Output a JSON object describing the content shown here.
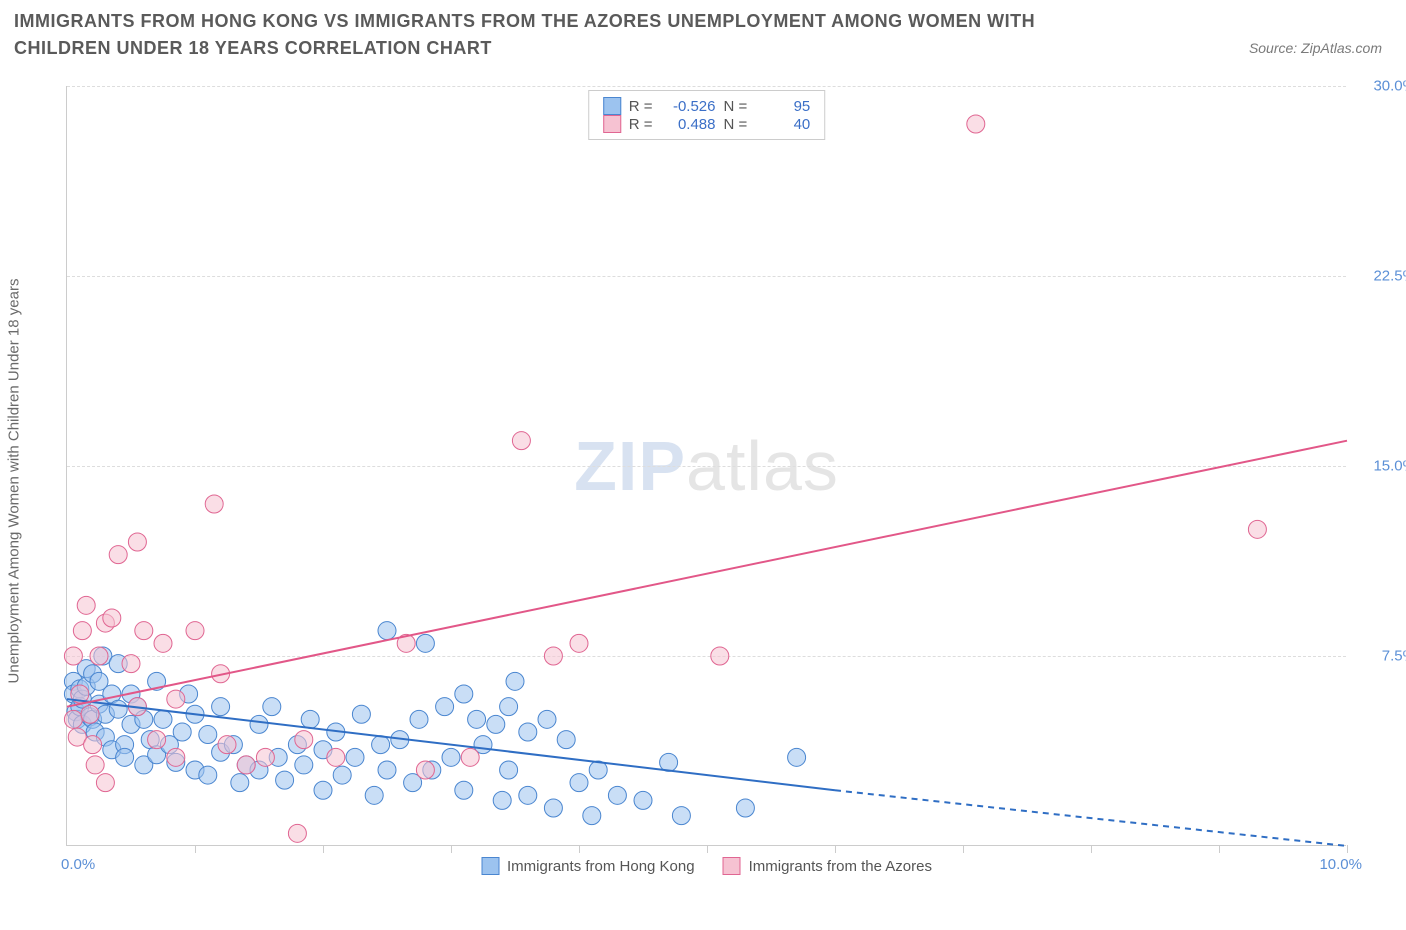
{
  "title": "IMMIGRANTS FROM HONG KONG VS IMMIGRANTS FROM THE AZORES UNEMPLOYMENT AMONG WOMEN WITH CHILDREN UNDER 18 YEARS CORRELATION CHART",
  "source": "Source: ZipAtlas.com",
  "watermark_a": "ZIP",
  "watermark_b": "atlas",
  "y_axis_label": "Unemployment Among Women with Children Under 18 years",
  "chart": {
    "type": "scatter",
    "background_color": "#ffffff",
    "grid_color": "#dddddd",
    "axis_color": "#cccccc",
    "xlim": [
      0,
      10
    ],
    "ylim": [
      0,
      30
    ],
    "x_ticks": [
      1,
      2,
      3,
      4,
      5,
      6,
      7,
      8,
      9,
      10
    ],
    "y_ticks": [
      7.5,
      15.0,
      22.5,
      30.0
    ],
    "y_tick_labels": [
      "7.5%",
      "15.0%",
      "22.5%",
      "30.0%"
    ],
    "x_min_label": "0.0%",
    "x_max_label": "10.0%",
    "marker_radius": 9,
    "marker_opacity": 0.55,
    "line_width": 2,
    "series": [
      {
        "name": "Immigrants from Hong Kong",
        "fill_color": "#9cc3ef",
        "stroke_color": "#4a86d0",
        "line_color": "#2f6ec4",
        "stats": {
          "R_label": "R =",
          "R": "-0.526",
          "N_label": "N =",
          "N": "95"
        },
        "trend": {
          "x1": 0,
          "y1": 5.8,
          "x2": 6.0,
          "y2": 2.2,
          "x2_dash": 10.0,
          "y2_dash": 0.0
        },
        "points": [
          [
            0.05,
            6.5
          ],
          [
            0.05,
            6.0
          ],
          [
            0.07,
            5.3
          ],
          [
            0.08,
            5.0
          ],
          [
            0.1,
            6.2
          ],
          [
            0.1,
            5.5
          ],
          [
            0.12,
            5.8
          ],
          [
            0.12,
            4.8
          ],
          [
            0.15,
            7.0
          ],
          [
            0.15,
            6.3
          ],
          [
            0.18,
            5.1
          ],
          [
            0.2,
            6.8
          ],
          [
            0.2,
            5.0
          ],
          [
            0.22,
            4.5
          ],
          [
            0.25,
            6.5
          ],
          [
            0.25,
            5.6
          ],
          [
            0.28,
            7.5
          ],
          [
            0.3,
            5.2
          ],
          [
            0.3,
            4.3
          ],
          [
            0.35,
            3.8
          ],
          [
            0.35,
            6.0
          ],
          [
            0.4,
            7.2
          ],
          [
            0.4,
            5.4
          ],
          [
            0.45,
            4.0
          ],
          [
            0.45,
            3.5
          ],
          [
            0.5,
            6.0
          ],
          [
            0.5,
            4.8
          ],
          [
            0.55,
            5.5
          ],
          [
            0.6,
            3.2
          ],
          [
            0.6,
            5.0
          ],
          [
            0.65,
            4.2
          ],
          [
            0.7,
            6.5
          ],
          [
            0.7,
            3.6
          ],
          [
            0.75,
            5.0
          ],
          [
            0.8,
            4.0
          ],
          [
            0.85,
            3.3
          ],
          [
            0.9,
            4.5
          ],
          [
            0.95,
            6.0
          ],
          [
            1.0,
            3.0
          ],
          [
            1.0,
            5.2
          ],
          [
            1.1,
            4.4
          ],
          [
            1.1,
            2.8
          ],
          [
            1.2,
            3.7
          ],
          [
            1.2,
            5.5
          ],
          [
            1.3,
            4.0
          ],
          [
            1.35,
            2.5
          ],
          [
            1.4,
            3.2
          ],
          [
            1.5,
            4.8
          ],
          [
            1.5,
            3.0
          ],
          [
            1.6,
            5.5
          ],
          [
            1.65,
            3.5
          ],
          [
            1.7,
            2.6
          ],
          [
            1.8,
            4.0
          ],
          [
            1.85,
            3.2
          ],
          [
            1.9,
            5.0
          ],
          [
            2.0,
            2.2
          ],
          [
            2.0,
            3.8
          ],
          [
            2.1,
            4.5
          ],
          [
            2.15,
            2.8
          ],
          [
            2.25,
            3.5
          ],
          [
            2.3,
            5.2
          ],
          [
            2.4,
            2.0
          ],
          [
            2.45,
            4.0
          ],
          [
            2.5,
            8.5
          ],
          [
            2.5,
            3.0
          ],
          [
            2.6,
            4.2
          ],
          [
            2.7,
            2.5
          ],
          [
            2.75,
            5.0
          ],
          [
            2.8,
            8.0
          ],
          [
            2.85,
            3.0
          ],
          [
            2.95,
            5.5
          ],
          [
            3.0,
            3.5
          ],
          [
            3.1,
            6.0
          ],
          [
            3.1,
            2.2
          ],
          [
            3.2,
            5.0
          ],
          [
            3.25,
            4.0
          ],
          [
            3.35,
            4.8
          ],
          [
            3.4,
            1.8
          ],
          [
            3.45,
            5.5
          ],
          [
            3.45,
            3.0
          ],
          [
            3.5,
            6.5
          ],
          [
            3.6,
            4.5
          ],
          [
            3.6,
            2.0
          ],
          [
            3.75,
            5.0
          ],
          [
            3.8,
            1.5
          ],
          [
            3.9,
            4.2
          ],
          [
            4.0,
            2.5
          ],
          [
            4.1,
            1.2
          ],
          [
            4.15,
            3.0
          ],
          [
            4.3,
            2.0
          ],
          [
            4.5,
            1.8
          ],
          [
            4.7,
            3.3
          ],
          [
            4.8,
            1.2
          ],
          [
            5.3,
            1.5
          ],
          [
            5.7,
            3.5
          ]
        ]
      },
      {
        "name": "Immigrants from the Azores",
        "fill_color": "#f6c2d2",
        "stroke_color": "#e06692",
        "line_color": "#e25788",
        "stats": {
          "R_label": "R =",
          "R": "0.488",
          "N_label": "N =",
          "N": "40"
        },
        "trend": {
          "x1": 0,
          "y1": 5.5,
          "x2": 10.0,
          "y2": 16.0
        },
        "points": [
          [
            0.05,
            5.0
          ],
          [
            0.05,
            7.5
          ],
          [
            0.08,
            4.3
          ],
          [
            0.1,
            6.0
          ],
          [
            0.12,
            8.5
          ],
          [
            0.15,
            9.5
          ],
          [
            0.18,
            5.2
          ],
          [
            0.2,
            4.0
          ],
          [
            0.22,
            3.2
          ],
          [
            0.25,
            7.5
          ],
          [
            0.3,
            8.8
          ],
          [
            0.3,
            2.5
          ],
          [
            0.35,
            9.0
          ],
          [
            0.4,
            11.5
          ],
          [
            0.5,
            7.2
          ],
          [
            0.55,
            5.5
          ],
          [
            0.55,
            12.0
          ],
          [
            0.6,
            8.5
          ],
          [
            0.7,
            4.2
          ],
          [
            0.75,
            8.0
          ],
          [
            0.85,
            5.8
          ],
          [
            0.85,
            3.5
          ],
          [
            1.0,
            8.5
          ],
          [
            1.15,
            13.5
          ],
          [
            1.2,
            6.8
          ],
          [
            1.25,
            4.0
          ],
          [
            1.4,
            3.2
          ],
          [
            1.55,
            3.5
          ],
          [
            1.8,
            0.5
          ],
          [
            1.85,
            4.2
          ],
          [
            2.1,
            3.5
          ],
          [
            2.65,
            8.0
          ],
          [
            2.8,
            3.0
          ],
          [
            3.15,
            3.5
          ],
          [
            3.55,
            16.0
          ],
          [
            3.8,
            7.5
          ],
          [
            4.0,
            8.0
          ],
          [
            5.1,
            7.5
          ],
          [
            7.1,
            28.5
          ],
          [
            9.3,
            12.5
          ]
        ]
      }
    ]
  }
}
